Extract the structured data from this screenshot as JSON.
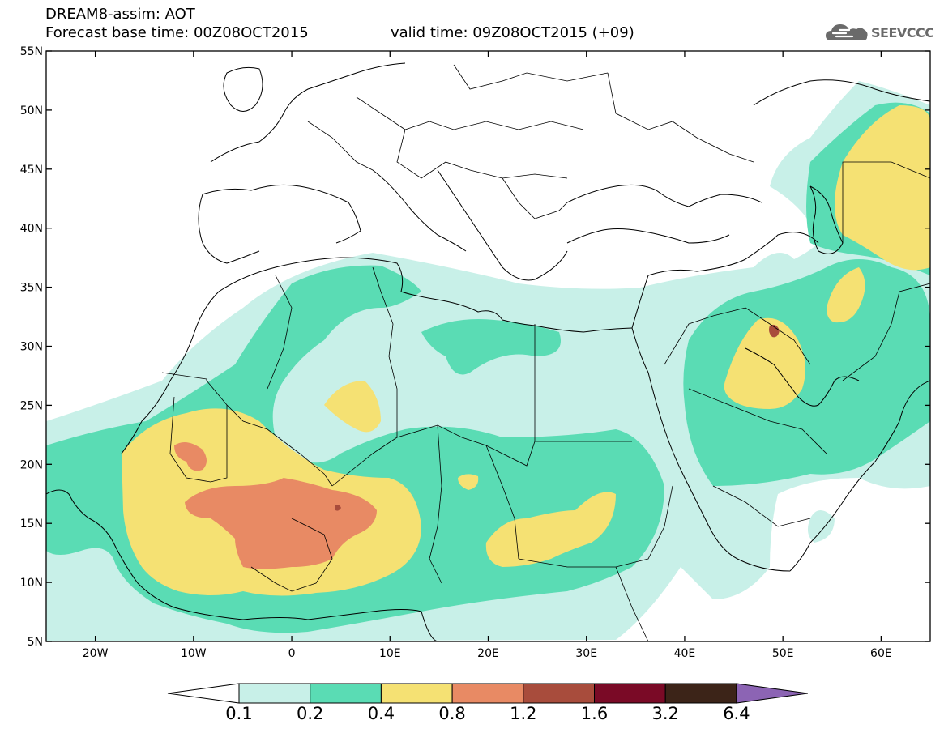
{
  "header": {
    "title": "DREAM8-assim: AOT",
    "base_time": "Forecast base time: 00Z08OCT2015",
    "valid_time": "valid time: 09Z08OCT2015 (+09)"
  },
  "logo": {
    "text": "SEEVCCC",
    "icon": "cloud-icon"
  },
  "map": {
    "lon_range": [
      -25,
      65
    ],
    "lat_range": [
      5,
      55
    ],
    "lat_labels": [
      "5N",
      "10N",
      "15N",
      "20N",
      "25N",
      "30N",
      "35N",
      "40N",
      "45N",
      "50N",
      "55N"
    ],
    "lon_labels": [
      "20W",
      "10W",
      "0",
      "10E",
      "20E",
      "30E",
      "40E",
      "50E",
      "60E"
    ]
  },
  "colorbar": {
    "labels": [
      "0.1",
      "0.2",
      "0.4",
      "0.8",
      "1.2",
      "1.6",
      "3.2",
      "6.4"
    ],
    "colors": [
      "#ffffff",
      "#c8f0e8",
      "#5adcb4",
      "#f5e173",
      "#e88a64",
      "#a84c3c",
      "#7a0a26",
      "#3c2418",
      "#8c64b4"
    ]
  },
  "colors": {
    "aot_01_02": "#c8f0e8",
    "aot_02_04": "#5adcb4",
    "aot_04_08": "#f5e173",
    "aot_08_12": "#e88a64",
    "aot_12_16": "#a84c3c",
    "aot_16_32": "#7a0a26",
    "aot_32_64": "#3c2418",
    "aot_above_64": "#8c64b4"
  }
}
